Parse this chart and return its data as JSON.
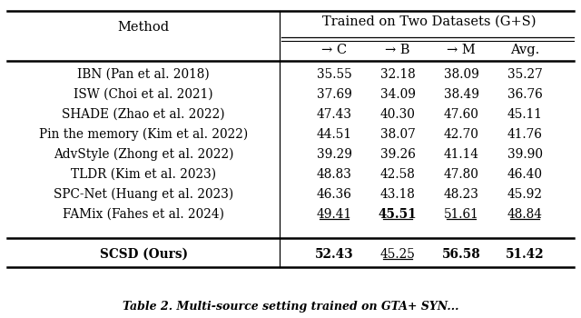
{
  "header_row1_left": "Method",
  "header_row1_right": "Trained on Two Datasets (G+S)",
  "col_headers": [
    "→ C",
    "→ B",
    "→ M",
    "Avg."
  ],
  "rows": [
    [
      "IBN (Pan et al. 2018)",
      "35.55",
      "32.18",
      "38.09",
      "35.27"
    ],
    [
      "ISW (Choi et al. 2021)",
      "37.69",
      "34.09",
      "38.49",
      "36.76"
    ],
    [
      "SHADE (Zhao et al. 2022)",
      "47.43",
      "40.30",
      "47.60",
      "45.11"
    ],
    [
      "Pin the memory (Kim et al. 2022)",
      "44.51",
      "38.07",
      "42.70",
      "41.76"
    ],
    [
      "AdvStyle (Zhong et al. 2022)",
      "39.29",
      "39.26",
      "41.14",
      "39.90"
    ],
    [
      "TLDR (Kim et al. 2023)",
      "48.83",
      "42.58",
      "47.80",
      "46.40"
    ],
    [
      "SPC-Net (Huang et al. 2023)",
      "46.36",
      "43.18",
      "48.23",
      "45.92"
    ],
    [
      "FAMix (Fahes et al. 2024)",
      "49.41",
      "45.51",
      "51.61",
      "48.84"
    ]
  ],
  "famix_bold": [
    false,
    true,
    false,
    false
  ],
  "famix_underline": [
    true,
    true,
    true,
    true
  ],
  "last_row": [
    "SCSD (Ours)",
    "52.43",
    "45.25",
    "56.58",
    "51.42"
  ],
  "last_row_bold": [
    true,
    true,
    false,
    true,
    true
  ],
  "last_row_underline": [
    false,
    false,
    true,
    false,
    false
  ],
  "caption": "Table 2. Multi-source setting trained on GTA+ SYN..."
}
